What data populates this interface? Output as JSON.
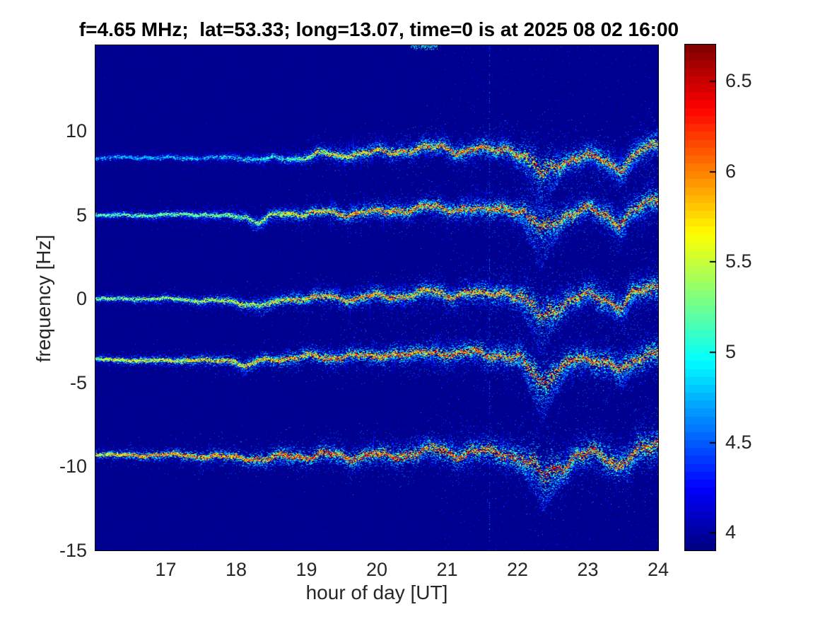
{
  "chart_data": {
    "type": "heatmap",
    "title": "f=4.65 MHz;  lat=53.33; long=13.07, time=0 is at 2025 08 02 16:00",
    "xlabel": "hour of day [UT]",
    "ylabel": "frequency [Hz]",
    "xlim": [
      16,
      24
    ],
    "ylim": [
      -15,
      15.1
    ],
    "grid": false,
    "x_ticks": [
      {
        "label": "17",
        "value": 17
      },
      {
        "label": "18",
        "value": 18
      },
      {
        "label": "19",
        "value": 19
      },
      {
        "label": "20",
        "value": 20
      },
      {
        "label": "21",
        "value": 21
      },
      {
        "label": "22",
        "value": 22
      },
      {
        "label": "23",
        "value": 23
      },
      {
        "label": "24",
        "value": 24
      }
    ],
    "y_ticks": [
      {
        "label": "10",
        "value": 10
      },
      {
        "label": "5",
        "value": 5
      },
      {
        "label": "0",
        "value": 0
      },
      {
        "label": "-5",
        "value": -5
      },
      {
        "label": "-10",
        "value": -10
      },
      {
        "label": "-15",
        "value": -15
      }
    ],
    "colorbar": {
      "colormap": "jet",
      "range": [
        3.9,
        6.7
      ],
      "ticks": [
        {
          "label": "6.5",
          "value": 6.5
        },
        {
          "label": "6",
          "value": 6
        },
        {
          "label": "5.5",
          "value": 5.5
        },
        {
          "label": "5",
          "value": 5
        },
        {
          "label": "4.5",
          "value": 4.5
        },
        {
          "label": "4",
          "value": 4
        }
      ]
    },
    "background_value": 3.95,
    "events": {
      "main_dip_hour": 22.33,
      "secondary_dip_hour": 23.47
    },
    "artifacts": {
      "vertical_line_hour": 21.6,
      "top_edge_blob_hour": 20.65
    },
    "traces": [
      {
        "name": "doppler-trace-plus8p5",
        "points": [
          [
            16,
            8.4
          ],
          [
            16.4,
            8.45
          ],
          [
            16.8,
            8.42
          ],
          [
            17.2,
            8.36
          ],
          [
            17.6,
            8.45
          ],
          [
            18,
            8.4
          ],
          [
            18.4,
            8.34
          ],
          [
            18.75,
            8.28
          ],
          [
            19.0,
            8.5
          ],
          [
            19.2,
            8.72
          ],
          [
            19.45,
            8.52
          ],
          [
            19.7,
            8.72
          ],
          [
            19.95,
            8.8
          ],
          [
            20.2,
            8.66
          ],
          [
            20.45,
            8.85
          ],
          [
            20.7,
            9.0
          ],
          [
            20.95,
            9.05
          ],
          [
            21.15,
            8.85
          ],
          [
            21.4,
            9.0
          ],
          [
            21.62,
            8.8
          ],
          [
            21.85,
            8.95
          ],
          [
            22.05,
            8.55
          ],
          [
            22.2,
            8.0
          ],
          [
            22.33,
            7.35
          ],
          [
            22.5,
            7.95
          ],
          [
            22.7,
            8.3
          ],
          [
            22.95,
            8.55
          ],
          [
            23.15,
            8.4
          ],
          [
            23.46,
            7.8
          ],
          [
            23.65,
            8.35
          ],
          [
            23.85,
            8.95
          ],
          [
            24,
            9.15
          ]
        ],
        "strength": [
          [
            16,
            0.38
          ],
          [
            17.5,
            0.42
          ],
          [
            18.7,
            0.5
          ],
          [
            19.2,
            0.78
          ],
          [
            20,
            0.86
          ],
          [
            21,
            0.92
          ],
          [
            24,
            0.95
          ]
        ],
        "width_scale": 0.95,
        "jitter_scale": 1.0,
        "dashed_before": 18.7,
        "sprays": [
          {
            "t0": 21.98,
            "t1": 22.72,
            "peak": 22.33,
            "depth": 2.5,
            "count": 520
          },
          {
            "t0": 23.25,
            "t1": 23.7,
            "peak": 23.47,
            "depth": 1.1,
            "count": 200
          }
        ]
      },
      {
        "name": "doppler-trace-plus5",
        "points": [
          [
            16,
            5.0
          ],
          [
            16.5,
            5.0
          ],
          [
            17,
            4.98
          ],
          [
            17.4,
            5.05
          ],
          [
            17.8,
            4.95
          ],
          [
            18.1,
            4.95
          ],
          [
            18.3,
            4.6
          ],
          [
            18.55,
            5.0
          ],
          [
            18.9,
            5.05
          ],
          [
            19.2,
            5.18
          ],
          [
            19.5,
            5.05
          ],
          [
            19.8,
            5.28
          ],
          [
            20.1,
            5.15
          ],
          [
            20.4,
            5.28
          ],
          [
            20.7,
            5.45
          ],
          [
            20.95,
            5.32
          ],
          [
            21.25,
            5.48
          ],
          [
            21.55,
            5.3
          ],
          [
            21.85,
            5.5
          ],
          [
            22.05,
            5.15
          ],
          [
            22.2,
            4.6
          ],
          [
            22.33,
            4.1
          ],
          [
            22.5,
            4.6
          ],
          [
            22.75,
            5.1
          ],
          [
            23.0,
            5.35
          ],
          [
            23.2,
            5.15
          ],
          [
            23.46,
            4.62
          ],
          [
            23.65,
            5.2
          ],
          [
            23.85,
            5.6
          ],
          [
            24,
            5.9
          ]
        ],
        "strength": [
          [
            16,
            0.55
          ],
          [
            18,
            0.62
          ],
          [
            19,
            0.82
          ],
          [
            20,
            0.9
          ],
          [
            24,
            0.95
          ]
        ],
        "width_scale": 1.0,
        "jitter_scale": 1.0,
        "dashed_before": 0,
        "sprays": [
          {
            "t0": 21.98,
            "t1": 22.7,
            "peak": 22.33,
            "depth": 2.3,
            "count": 500
          },
          {
            "t0": 23.25,
            "t1": 23.7,
            "peak": 23.47,
            "depth": 1.0,
            "count": 190
          },
          {
            "t0": 18.12,
            "t1": 18.45,
            "peak": 18.3,
            "depth": 0.7,
            "count": 70
          }
        ]
      },
      {
        "name": "doppler-trace-0",
        "points": [
          [
            16,
            0.02
          ],
          [
            16.5,
            0.0
          ],
          [
            17,
            -0.02
          ],
          [
            17.5,
            -0.08
          ],
          [
            17.9,
            -0.12
          ],
          [
            18.2,
            -0.3
          ],
          [
            18.45,
            -0.38
          ],
          [
            18.7,
            -0.05
          ],
          [
            19.0,
            0.05
          ],
          [
            19.3,
            0.15
          ],
          [
            19.6,
            0.02
          ],
          [
            19.9,
            0.2
          ],
          [
            20.2,
            0.08
          ],
          [
            20.5,
            0.25
          ],
          [
            20.8,
            0.4
          ],
          [
            21.0,
            0.25
          ],
          [
            21.3,
            0.45
          ],
          [
            21.55,
            0.25
          ],
          [
            21.8,
            0.42
          ],
          [
            22.0,
            0.1
          ],
          [
            22.2,
            -0.5
          ],
          [
            22.33,
            -1.15
          ],
          [
            22.5,
            -0.6
          ],
          [
            22.75,
            0.0
          ],
          [
            23.0,
            0.3
          ],
          [
            23.2,
            0.1
          ],
          [
            23.47,
            -0.45
          ],
          [
            23.65,
            0.2
          ],
          [
            23.85,
            0.5
          ],
          [
            24,
            0.65
          ]
        ],
        "strength": [
          [
            16,
            0.6
          ],
          [
            18,
            0.7
          ],
          [
            19.5,
            0.88
          ],
          [
            24,
            0.96
          ]
        ],
        "width_scale": 1.05,
        "jitter_scale": 1.0,
        "dashed_before": 0,
        "sprays": [
          {
            "t0": 21.98,
            "t1": 22.68,
            "peak": 22.33,
            "depth": 2.2,
            "count": 480
          },
          {
            "t0": 23.27,
            "t1": 23.7,
            "peak": 23.48,
            "depth": 0.9,
            "count": 170
          },
          {
            "t0": 18.15,
            "t1": 18.55,
            "peak": 18.35,
            "depth": 0.6,
            "count": 60
          }
        ]
      },
      {
        "name": "doppler-trace-minus3p6",
        "points": [
          [
            16,
            -3.6
          ],
          [
            16.4,
            -3.62
          ],
          [
            16.8,
            -3.68
          ],
          [
            17.2,
            -3.65
          ],
          [
            17.6,
            -3.72
          ],
          [
            17.95,
            -3.62
          ],
          [
            18.12,
            -4.0
          ],
          [
            18.35,
            -3.62
          ],
          [
            18.7,
            -3.55
          ],
          [
            19.0,
            -3.45
          ],
          [
            19.3,
            -3.55
          ],
          [
            19.6,
            -3.32
          ],
          [
            19.9,
            -3.42
          ],
          [
            20.2,
            -3.22
          ],
          [
            20.5,
            -3.38
          ],
          [
            20.8,
            -3.18
          ],
          [
            21.1,
            -3.32
          ],
          [
            21.4,
            -3.12
          ],
          [
            21.7,
            -3.28
          ],
          [
            22.0,
            -3.55
          ],
          [
            22.2,
            -4.3
          ],
          [
            22.34,
            -5.0
          ],
          [
            22.55,
            -4.35
          ],
          [
            22.8,
            -3.75
          ],
          [
            23.05,
            -3.5
          ],
          [
            23.25,
            -3.7
          ],
          [
            23.5,
            -4.22
          ],
          [
            23.7,
            -3.55
          ],
          [
            23.9,
            -3.1
          ],
          [
            24,
            -3.0
          ]
        ],
        "strength": [
          [
            16,
            0.72
          ],
          [
            18,
            0.8
          ],
          [
            19.5,
            0.92
          ],
          [
            24,
            0.97
          ]
        ],
        "width_scale": 1.15,
        "jitter_scale": 1.0,
        "dashed_before": 0,
        "sprays": [
          {
            "t0": 21.98,
            "t1": 22.75,
            "peak": 22.34,
            "depth": 2.3,
            "count": 520
          },
          {
            "t0": 23.3,
            "t1": 23.72,
            "peak": 23.5,
            "depth": 1.0,
            "count": 190
          },
          {
            "t0": 17.98,
            "t1": 18.3,
            "peak": 18.12,
            "depth": 0.5,
            "count": 60
          }
        ]
      },
      {
        "name": "doppler-trace-minus9",
        "points": [
          [
            16,
            -9.25
          ],
          [
            16.5,
            -9.3
          ],
          [
            17,
            -9.32
          ],
          [
            17.5,
            -9.38
          ],
          [
            18,
            -9.4
          ],
          [
            18.4,
            -9.55
          ],
          [
            18.7,
            -9.35
          ],
          [
            19.0,
            -9.45
          ],
          [
            19.3,
            -9.25
          ],
          [
            19.6,
            -9.42
          ],
          [
            19.9,
            -9.22
          ],
          [
            20.2,
            -9.4
          ],
          [
            20.5,
            -9.22
          ],
          [
            20.8,
            -9.05
          ],
          [
            21.1,
            -9.22
          ],
          [
            21.4,
            -9.02
          ],
          [
            21.7,
            -9.12
          ],
          [
            22.0,
            -9.38
          ],
          [
            22.2,
            -10.0
          ],
          [
            22.35,
            -10.65
          ],
          [
            22.6,
            -10.05
          ],
          [
            22.85,
            -9.4
          ],
          [
            23.05,
            -9.15
          ],
          [
            23.25,
            -9.35
          ],
          [
            23.42,
            -9.72
          ],
          [
            23.6,
            -9.45
          ],
          [
            23.8,
            -9.05
          ],
          [
            24,
            -8.8
          ]
        ],
        "strength": [
          [
            16,
            0.8
          ],
          [
            17,
            0.88
          ],
          [
            19,
            0.96
          ],
          [
            24,
            1.0
          ]
        ],
        "width_scale": 1.3,
        "jitter_scale": 1.2,
        "dashed_before": 0,
        "sprays": [
          {
            "t0": 21.98,
            "t1": 22.8,
            "peak": 22.35,
            "depth": 2.0,
            "count": 600
          },
          {
            "t0": 23.25,
            "t1": 23.75,
            "peak": 23.45,
            "depth": 0.9,
            "count": 200
          },
          {
            "t0": 18.2,
            "t1": 19.0,
            "peak": 18.55,
            "depth": 0.5,
            "count": 90
          }
        ]
      }
    ]
  }
}
